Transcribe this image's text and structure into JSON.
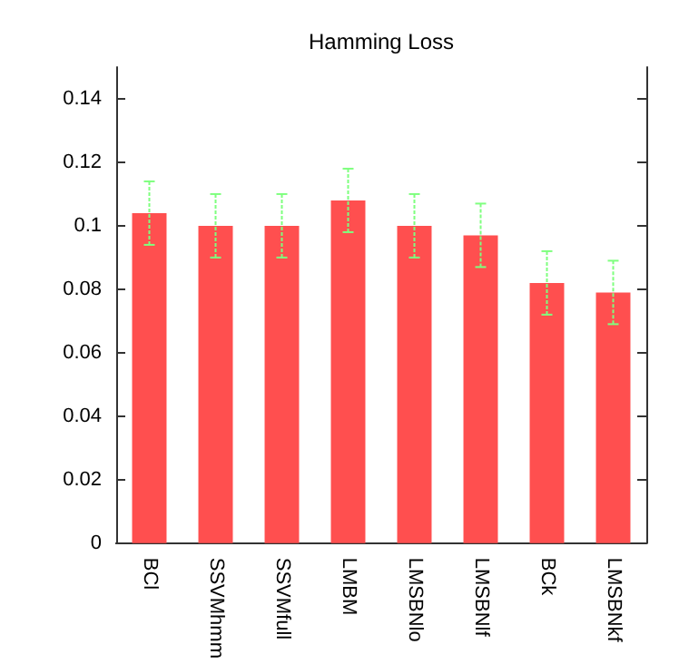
{
  "chart_data": {
    "type": "bar",
    "title": "Hamming Loss",
    "categories": [
      "BCl",
      "SSVMhmm",
      "SSVMfull",
      "LMBM",
      "LMSBNlo",
      "LMSBNlf",
      "BCk",
      "LMSBNkf"
    ],
    "values": [
      0.104,
      0.1,
      0.1,
      0.108,
      0.1,
      0.097,
      0.082,
      0.079
    ],
    "errors": [
      0.01,
      0.01,
      0.01,
      0.01,
      0.01,
      0.01,
      0.01,
      0.01
    ],
    "color": "#ff4f4f",
    "ylim": [
      0,
      0.15
    ],
    "yticks": [
      0,
      0.02,
      0.04,
      0.06,
      0.08,
      0.1,
      0.12,
      0.14
    ],
    "grid": false
  }
}
